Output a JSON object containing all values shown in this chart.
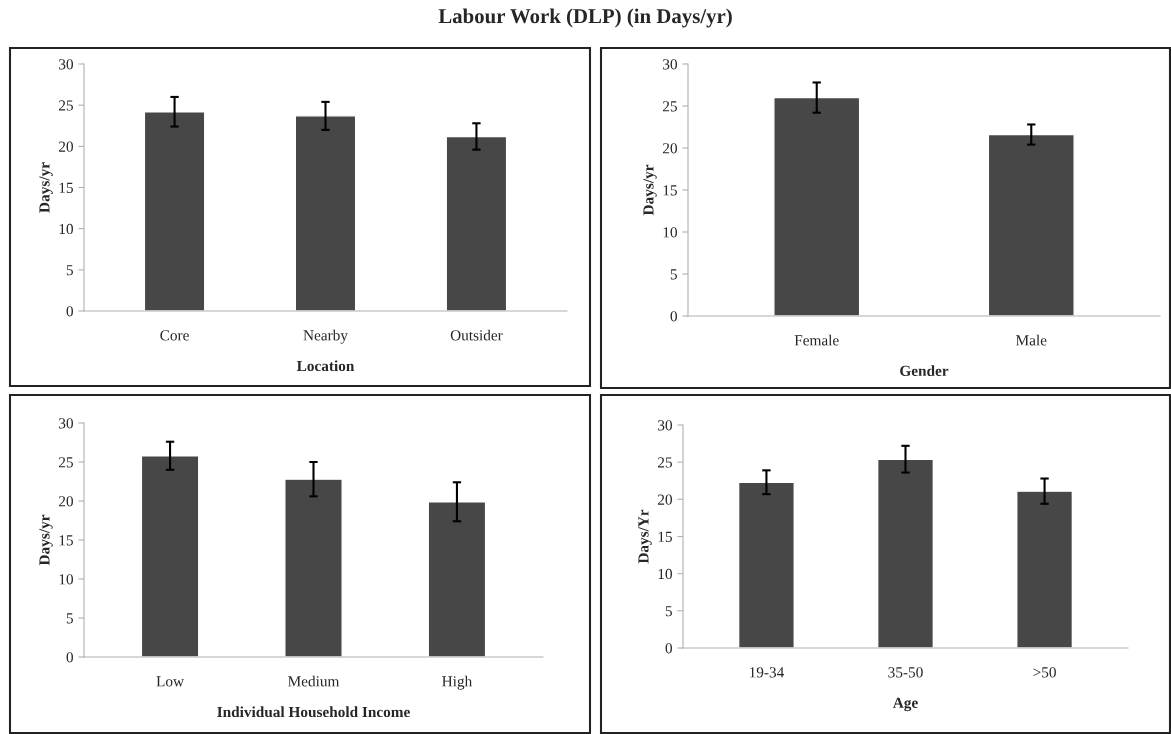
{
  "chart_data": [
    {
      "type": "bar",
      "title": "Labour Work (DLP) (in Days/yr)",
      "xlabel": "Location",
      "ylabel": "Days/yr",
      "categories": [
        "Core",
        "Nearby",
        "Outsider"
      ],
      "values": [
        24.2,
        23.7,
        21.2
      ],
      "errors": [
        1.8,
        1.7,
        1.6
      ],
      "color": "#474747",
      "ylim": [
        0,
        30
      ],
      "yticks": [
        0,
        5,
        10,
        15,
        20,
        25,
        30
      ],
      "grid": false,
      "legend": false
    },
    {
      "type": "bar",
      "xlabel": "Gender",
      "ylabel": "Days/yr",
      "categories": [
        "Female",
        "Male"
      ],
      "values": [
        26.0,
        21.6
      ],
      "errors": [
        1.8,
        1.2
      ],
      "color": "#474747",
      "ylim": [
        0,
        30
      ],
      "yticks": [
        0,
        5,
        10,
        15,
        20,
        25,
        30
      ],
      "grid": false,
      "legend": false
    },
    {
      "type": "bar",
      "xlabel": "Individual Household Income",
      "ylabel": "Days/yr",
      "categories": [
        "Low",
        "Medium",
        "High"
      ],
      "values": [
        25.8,
        22.8,
        19.9
      ],
      "errors": [
        1.8,
        2.2,
        2.5
      ],
      "color": "#474747",
      "ylim": [
        0,
        30
      ],
      "yticks": [
        0,
        5,
        10,
        15,
        20,
        25,
        30
      ],
      "grid": false,
      "legend": false
    },
    {
      "type": "bar",
      "xlabel": "Age",
      "ylabel": "Days/Yr",
      "categories": [
        "19-34",
        "35-50",
        ">50"
      ],
      "values": [
        22.3,
        25.4,
        21.1
      ],
      "errors": [
        1.6,
        1.8,
        1.7
      ],
      "color": "#474747",
      "ylim": [
        0,
        30
      ],
      "yticks": [
        0,
        5,
        10,
        15,
        20,
        25,
        30
      ],
      "grid": false,
      "legend": false
    }
  ]
}
